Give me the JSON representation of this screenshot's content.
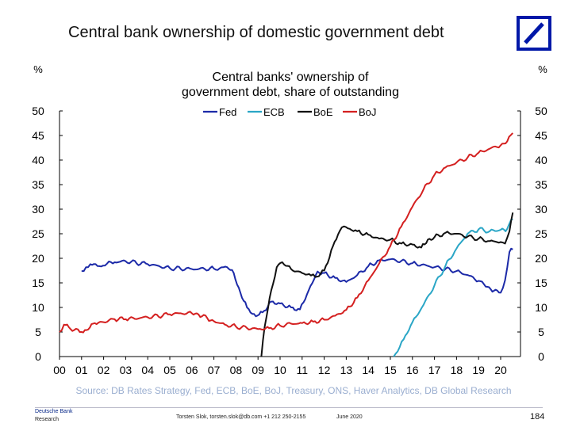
{
  "slide": {
    "title": "Central bank ownership of domestic government debt"
  },
  "footer": {
    "brand": "Deutsche Bank",
    "department": "Research",
    "author": "Torsten Slok, torsten.slok@db.com  +1 212 250-2155",
    "date": "June 2020",
    "page_number": "184"
  },
  "colors": {
    "Fed": "#1c2aa8",
    "ECB": "#2aa6c6",
    "BoE": "#111111",
    "BoJ": "#d42020",
    "logo": "#0018a8",
    "source": "#9aaed0"
  },
  "chart_data": {
    "type": "line",
    "title": "Central banks' ownership of\ngovernment debt, share of outstanding",
    "ylabel_left": "%",
    "ylabel_right": "%",
    "xlim": [
      2000,
      2020.9
    ],
    "ylim": [
      0,
      50
    ],
    "yticks": [
      0,
      5,
      10,
      15,
      20,
      25,
      30,
      35,
      40,
      45,
      50
    ],
    "xticks": [
      "00",
      "01",
      "02",
      "03",
      "04",
      "05",
      "06",
      "07",
      "08",
      "09",
      "10",
      "11",
      "12",
      "13",
      "14",
      "15",
      "16",
      "17",
      "18",
      "19",
      "20"
    ],
    "legend": [
      "Fed",
      "ECB",
      "BoE",
      "BoJ"
    ],
    "legend_position": "top-center",
    "source": "Source: DB Rates Strategy, Fed, ECB, BoE, BoJ, Treasury, ONS, Haver Analytics, DB Global Research",
    "series": [
      {
        "name": "Fed",
        "x": [
          2001.0,
          2001.2,
          2001.4,
          2001.8,
          2002.5,
          2003.0,
          2004.0,
          2005.0,
          2006.0,
          2007.0,
          2007.6,
          2007.9,
          2008.2,
          2008.5,
          2008.9,
          2009.2,
          2009.6,
          2010.0,
          2010.5,
          2010.9,
          2011.3,
          2011.7,
          2012.0,
          2012.5,
          2013.0,
          2013.5,
          2014.0,
          2014.5,
          2015.0,
          2016.0,
          2017.0,
          2018.0,
          2018.5,
          2019.0,
          2019.4,
          2019.7,
          2020.0,
          2020.2,
          2020.4,
          2020.55
        ],
        "y": [
          17.4,
          18.2,
          18.8,
          18.4,
          19.2,
          19.4,
          18.8,
          18.0,
          17.8,
          17.9,
          18.2,
          17.0,
          13.0,
          10.0,
          8.2,
          9.0,
          11.2,
          10.8,
          10.0,
          9.6,
          13.5,
          17.3,
          17.0,
          16.0,
          15.2,
          16.6,
          18.4,
          19.6,
          19.8,
          19.0,
          18.2,
          17.4,
          16.6,
          15.4,
          14.2,
          13.4,
          13.0,
          15.5,
          21.3,
          21.8
        ]
      },
      {
        "name": "ECB",
        "x": [
          2015.15,
          2015.6,
          2016.0,
          2016.5,
          2017.0,
          2017.5,
          2018.0,
          2018.5,
          2019.0,
          2019.5,
          2020.0,
          2020.3,
          2020.55
        ],
        "y": [
          0,
          3.5,
          7.0,
          10.5,
          14.5,
          18.5,
          22.0,
          25.0,
          25.9,
          25.5,
          25.8,
          26.0,
          28.0
        ]
      },
      {
        "name": "BoE",
        "x": [
          2009.15,
          2009.3,
          2009.6,
          2009.85,
          2010.1,
          2010.5,
          2011.0,
          2011.4,
          2011.6,
          2012.0,
          2012.4,
          2012.7,
          2012.9,
          2013.5,
          2014.0,
          2014.5,
          2015.0,
          2015.5,
          2016.0,
          2016.4,
          2016.7,
          2017.0,
          2017.5,
          2018.0,
          2018.5,
          2019.0,
          2019.5,
          2020.0,
          2020.2,
          2020.4,
          2020.55
        ],
        "y": [
          0,
          6.0,
          13.5,
          18.2,
          19.2,
          17.8,
          17.0,
          16.5,
          16.2,
          17.5,
          22.5,
          25.5,
          26.5,
          25.5,
          24.8,
          24.0,
          23.8,
          23.0,
          22.8,
          22.2,
          23.8,
          24.3,
          25.2,
          25.0,
          24.4,
          24.0,
          23.5,
          23.3,
          23.0,
          25.5,
          29.3
        ]
      },
      {
        "name": "BoJ",
        "x": [
          2000.0,
          2000.2,
          2000.5,
          2001.0,
          2001.3,
          2001.6,
          2002.0,
          2002.5,
          2003.0,
          2004.0,
          2005.0,
          2005.5,
          2006.0,
          2006.3,
          2006.7,
          2007.0,
          2007.5,
          2008.0,
          2008.5,
          2009.0,
          2009.5,
          2010.0,
          2010.5,
          2011.0,
          2011.5,
          2012.0,
          2012.5,
          2013.0,
          2013.5,
          2014.0,
          2014.5,
          2015.0,
          2015.5,
          2016.0,
          2016.5,
          2017.0,
          2017.5,
          2018.0,
          2018.5,
          2019.0,
          2019.5,
          2020.0,
          2020.3,
          2020.55
        ],
        "y": [
          5.0,
          6.5,
          5.6,
          5.0,
          5.5,
          6.8,
          7.0,
          7.6,
          7.6,
          8.0,
          8.6,
          8.8,
          8.8,
          8.6,
          7.8,
          7.2,
          6.5,
          6.1,
          5.8,
          5.6,
          5.8,
          6.3,
          6.7,
          6.8,
          7.1,
          7.5,
          8.3,
          9.5,
          12.0,
          15.5,
          19.0,
          22.5,
          26.5,
          30.5,
          34.0,
          37.0,
          38.5,
          39.5,
          40.5,
          41.5,
          42.3,
          43.0,
          43.8,
          45.5
        ]
      }
    ]
  }
}
